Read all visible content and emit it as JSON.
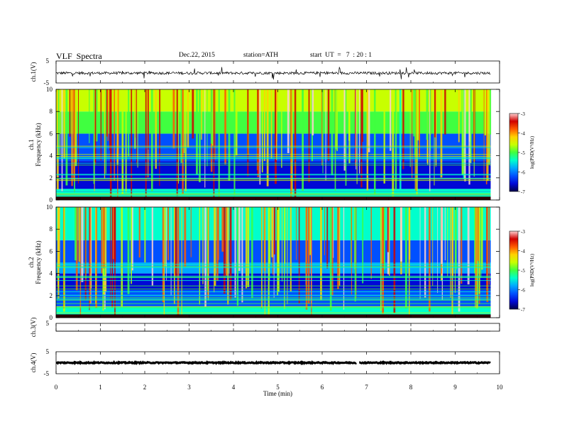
{
  "header": {
    "title": "VLF  Spectra",
    "date": "Dec.22, 2015",
    "station": "station=ATH",
    "start": "start  UT  =   7  : 20 : 1"
  },
  "colors": {
    "colorbar": [
      "#00004a",
      "#0008d6",
      "#0050ff",
      "#00a8ff",
      "#00ffcc",
      "#40ff40",
      "#c8ff00",
      "#ffd200",
      "#ff5a00",
      "#d00000",
      "#ffd0d0"
    ]
  },
  "chart_data": [
    {
      "type": "line",
      "panel": "ch1-waveform",
      "ylabel": "ch.1(V)",
      "ylim": [
        -5,
        5
      ],
      "yticks": [
        "5",
        "-5"
      ],
      "trace_level_V": -0.5,
      "x_range_min": [
        0,
        9.8
      ]
    },
    {
      "type": "heatmap",
      "panel": "ch1-spectrogram",
      "ylabel_line1": "ch.1",
      "ylabel_line2": "Frequency  (kHz)",
      "ylim": [
        0,
        10
      ],
      "yticks": [
        "0",
        "2",
        "4",
        "6",
        "8",
        "10"
      ],
      "x_range_min": [
        0,
        9.8
      ],
      "band_levels_logPSD": [
        {
          "f": [
            0,
            1
          ],
          "v": -5.2
        },
        {
          "f": [
            1,
            2
          ],
          "v": -6.3
        },
        {
          "f": [
            2,
            3.5
          ],
          "v": -6.6
        },
        {
          "f": [
            3.5,
            6
          ],
          "v": -6.0
        },
        {
          "f": [
            6,
            8
          ],
          "v": -5.1
        },
        {
          "f": [
            8,
            10
          ],
          "v": -4.6
        }
      ],
      "colorbar": {
        "label": "log(PSD(V²/Hz)",
        "ticks": [
          "-3",
          "-4",
          "-5",
          "-6",
          "-7"
        ],
        "range": [
          -7,
          -3
        ]
      }
    },
    {
      "type": "heatmap",
      "panel": "ch2-spectrogram",
      "ylabel_line1": "ch.2",
      "ylabel_line2": "Frequency  (kHz)",
      "ylim": [
        0,
        10
      ],
      "yticks": [
        "0",
        "2",
        "4",
        "6",
        "8",
        "10"
      ],
      "x_range_min": [
        0,
        9.8
      ],
      "band_levels_logPSD": [
        {
          "f": [
            0,
            1
          ],
          "v": -5.3
        },
        {
          "f": [
            1,
            2.5
          ],
          "v": -6.0
        },
        {
          "f": [
            2.5,
            4
          ],
          "v": -6.4
        },
        {
          "f": [
            4,
            5
          ],
          "v": -5.8
        },
        {
          "f": [
            5,
            7
          ],
          "v": -6.1
        },
        {
          "f": [
            7,
            10
          ],
          "v": -5.5
        }
      ],
      "colorbar": {
        "label": "log(PSD(V²/Hz)",
        "ticks": [
          "-3",
          "-4",
          "-5",
          "-6",
          "-7"
        ],
        "range": [
          -7,
          -3
        ]
      }
    },
    {
      "type": "line",
      "panel": "ch3-waveform",
      "ylabel": "ch.3(V)",
      "ylim": [
        -5,
        5
      ],
      "yticks": [
        "5"
      ],
      "trace_level_V": -5,
      "x_range_min": [
        0,
        9.8
      ]
    },
    {
      "type": "line",
      "panel": "ch4-waveform",
      "ylabel": "ch.4(V)",
      "ylim": [
        -5,
        5
      ],
      "yticks": [
        "5",
        "-5"
      ],
      "trace_level_V": 0,
      "gap_at_min": 6.8,
      "x_range_min": [
        0,
        9.8
      ]
    }
  ],
  "xaxis": {
    "label": "Time  (min)",
    "ticks": [
      "0",
      "1",
      "2",
      "3",
      "4",
      "5",
      "6",
      "7",
      "8",
      "9",
      "10"
    ],
    "range": [
      0,
      10
    ]
  }
}
